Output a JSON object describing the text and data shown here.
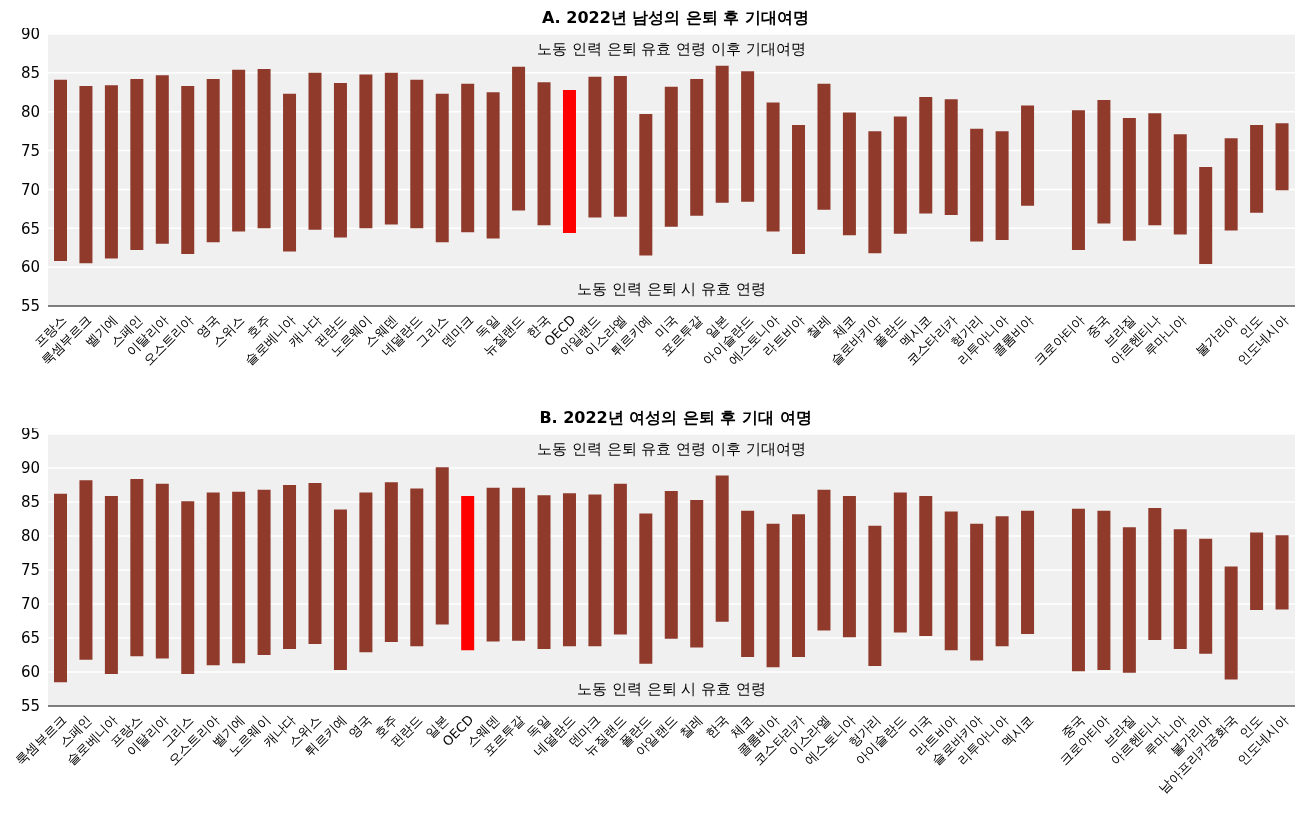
{
  "chart_data": [
    {
      "type": "bar",
      "title": "A. 2022년 남성의 은퇴 후 기대여명",
      "categories": [
        "프랑스",
        "룩셈부르크",
        "벨기에",
        "스페인",
        "이탈리아",
        "오스트리아",
        "영국",
        "스위스",
        "호주",
        "슬로베니아",
        "캐나다",
        "핀란드",
        "노르웨이",
        "스웨덴",
        "네덜란드",
        "그리스",
        "덴마크",
        "독일",
        "뉴질랜드",
        "한국",
        "OECD",
        "아일랜드",
        "이스라엘",
        "튀르키예",
        "미국",
        "포르투갈",
        "일본",
        "아이슬란드",
        "에스토니아",
        "라트비아",
        "칠레",
        "체코",
        "슬로바키아",
        "폴란드",
        "멕시코",
        "코스타리카",
        "헝가리",
        "리투아니아",
        "콜롬비아",
        null,
        "크로아티아",
        "중국",
        "브라질",
        "아르헨티나",
        "루마니아",
        null,
        "불가리아",
        "인도",
        "인도네시아"
      ],
      "base": [
        60.8,
        60.5,
        61.1,
        62.2,
        63.0,
        61.7,
        63.2,
        64.6,
        65.0,
        62.0,
        64.8,
        63.8,
        65.0,
        65.5,
        65.0,
        63.2,
        64.5,
        63.7,
        67.3,
        65.4,
        64.4,
        66.4,
        66.5,
        61.5,
        65.2,
        66.6,
        68.3,
        68.4,
        64.6,
        61.7,
        67.4,
        64.1,
        61.8,
        64.3,
        66.9,
        66.7,
        63.3,
        63.5,
        67.9,
        null,
        62.2,
        65.6,
        63.4,
        65.4,
        64.2,
        60.4,
        64.7,
        67.0,
        69.9
      ],
      "values": [
        23.3,
        22.8,
        22.3,
        22.0,
        21.7,
        21.6,
        21.0,
        20.8,
        20.5,
        20.3,
        20.2,
        19.9,
        19.8,
        19.5,
        19.1,
        19.1,
        19.1,
        18.8,
        18.5,
        18.4,
        18.4,
        18.1,
        18.1,
        18.2,
        18.0,
        17.6,
        17.6,
        16.8,
        16.6,
        16.6,
        16.2,
        15.8,
        15.7,
        15.1,
        15.0,
        14.9,
        14.5,
        14.0,
        12.9,
        null,
        18.0,
        15.9,
        15.8,
        14.4,
        12.9,
        12.5,
        11.9,
        11.3,
        8.6
      ],
      "colors": [
        "#8f3a2b",
        "#8f3a2b",
        "#8f3a2b",
        "#8f3a2b",
        "#8f3a2b",
        "#8f3a2b",
        "#8f3a2b",
        "#8f3a2b",
        "#8f3a2b",
        "#8f3a2b",
        "#8f3a2b",
        "#8f3a2b",
        "#8f3a2b",
        "#8f3a2b",
        "#8f3a2b",
        "#8f3a2b",
        "#8f3a2b",
        "#8f3a2b",
        "#8f3a2b",
        "#8f3a2b",
        "#ff0000",
        "#8f3a2b",
        "#8f3a2b",
        "#8f3a2b",
        "#8f3a2b",
        "#8f3a2b",
        "#8f3a2b",
        "#8f3a2b",
        "#8f3a2b",
        "#8f3a2b",
        "#8f3a2b",
        "#8f3a2b",
        "#8f3a2b",
        "#8f3a2b",
        "#8f3a2b",
        "#8f3a2b",
        "#8f3a2b",
        "#8f3a2b",
        "#8f3a2b",
        "#8f3a2b",
        "#8f3a2b",
        "#8f3a2b",
        "#8f3a2b",
        "#8f3a2b",
        "#8f3a2b",
        "#8f3a2b",
        "#8f3a2b",
        "#8f3a2b",
        "#8f3a2b"
      ],
      "ylim": [
        55,
        90
      ],
      "yticks": [
        55,
        60,
        65,
        70,
        75,
        80,
        85,
        90
      ],
      "grid": "y",
      "annotations": [
        "노동 인력 은퇴 유효 연령 이후 기대여명",
        "노동 인력 은퇴 시 유효 연령"
      ]
    },
    {
      "type": "bar",
      "title": "B. 2022년 여성의 은퇴 후 기대 여명",
      "categories": [
        "룩셈부르크",
        "스페인",
        "슬로베니아",
        "프랑스",
        "이탈리아",
        "그리스",
        "오스트리아",
        "벨기에",
        "노르웨이",
        "캐나다",
        "스위스",
        "튀르키예",
        "영국",
        "호주",
        "핀란드",
        "일본",
        "OECD",
        "스웨덴",
        "포르투갈",
        "독일",
        "네덜란드",
        "덴마크",
        "뉴질랜드",
        "폴란드",
        "아일랜드",
        "칠레",
        "한국",
        "체코",
        "콜롬비아",
        "코스타리카",
        "이스라엘",
        "에스토니아",
        "헝가리",
        "아이슬란드",
        "미국",
        "라트비아",
        "슬로바키아",
        "리투아니아",
        "멕시코",
        null,
        "중국",
        "크로아티아",
        "브라질",
        "아르헨티나",
        "루마니아",
        "불가리아",
        "남아프리카공화국",
        "인도",
        "인도네시아"
      ],
      "base": [
        58.5,
        61.8,
        59.7,
        62.3,
        62.0,
        59.7,
        61.0,
        61.3,
        62.5,
        63.4,
        64.1,
        60.3,
        62.9,
        64.4,
        63.8,
        67.0,
        63.2,
        64.5,
        64.6,
        63.4,
        63.8,
        63.8,
        65.5,
        61.2,
        64.9,
        63.6,
        67.4,
        62.2,
        60.7,
        62.2,
        66.1,
        65.1,
        60.9,
        65.8,
        65.3,
        63.2,
        61.7,
        63.8,
        65.6,
        null,
        60.1,
        60.3,
        59.9,
        64.7,
        63.4,
        62.7,
        58.9,
        69.1,
        69.2
      ],
      "values": [
        27.7,
        26.4,
        26.2,
        26.1,
        25.7,
        25.4,
        25.4,
        25.2,
        24.3,
        24.1,
        23.7,
        23.6,
        23.5,
        23.5,
        23.2,
        23.1,
        22.7,
        22.6,
        22.5,
        22.6,
        22.5,
        22.3,
        22.2,
        22.1,
        21.7,
        21.7,
        21.5,
        21.5,
        21.1,
        21.0,
        20.7,
        20.8,
        20.6,
        20.6,
        20.6,
        20.4,
        20.1,
        19.1,
        18.1,
        null,
        23.9,
        23.4,
        21.4,
        19.4,
        17.6,
        16.9,
        16.6,
        11.4,
        10.9
      ],
      "colors": [
        "#8f3a2b",
        "#8f3a2b",
        "#8f3a2b",
        "#8f3a2b",
        "#8f3a2b",
        "#8f3a2b",
        "#8f3a2b",
        "#8f3a2b",
        "#8f3a2b",
        "#8f3a2b",
        "#8f3a2b",
        "#8f3a2b",
        "#8f3a2b",
        "#8f3a2b",
        "#8f3a2b",
        "#8f3a2b",
        "#ff0000",
        "#8f3a2b",
        "#8f3a2b",
        "#8f3a2b",
        "#8f3a2b",
        "#8f3a2b",
        "#8f3a2b",
        "#8f3a2b",
        "#8f3a2b",
        "#8f3a2b",
        "#8f3a2b",
        "#8f3a2b",
        "#8f3a2b",
        "#8f3a2b",
        "#8f3a2b",
        "#8f3a2b",
        "#8f3a2b",
        "#8f3a2b",
        "#8f3a2b",
        "#8f3a2b",
        "#8f3a2b",
        "#8f3a2b",
        "#8f3a2b",
        "#8f3a2b",
        "#8f3a2b",
        "#8f3a2b",
        "#8f3a2b",
        "#8f3a2b",
        "#8f3a2b",
        "#8f3a2b",
        "#8f3a2b",
        "#8f3a2b",
        "#8f3a2b"
      ],
      "ylim": [
        55,
        95
      ],
      "yticks": [
        55,
        60,
        65,
        70,
        75,
        80,
        85,
        90,
        95
      ],
      "grid": "y",
      "annotations": [
        "노동 인력 은퇴 유효 연령 이후 기대여명",
        "노동 인력 은퇴 시 유효 연령"
      ]
    }
  ]
}
